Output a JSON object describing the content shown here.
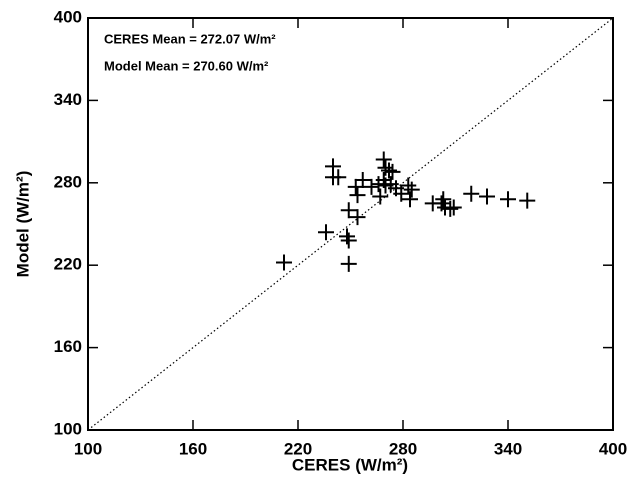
{
  "chart_data": {
    "type": "scatter",
    "x_label": "CERES  (W/m²)",
    "y_label": "Model  (W/m²)",
    "annotations": [
      "CERES Mean = 272.07 W/m²",
      "Model   Mean = 270.60 W/m²"
    ],
    "xlim": [
      100,
      400
    ],
    "ylim": [
      100,
      400
    ],
    "xticks": [
      100,
      160,
      220,
      280,
      340,
      400
    ],
    "yticks": [
      100,
      160,
      220,
      280,
      340,
      400
    ],
    "color": "#000000",
    "x": [
      212,
      249,
      249,
      248,
      236,
      249,
      254,
      240,
      240,
      243,
      253,
      254,
      257,
      262,
      266,
      267,
      269,
      269,
      270,
      272,
      274,
      270,
      273,
      276,
      279,
      283,
      285,
      284,
      297,
      302,
      303,
      304,
      309,
      307,
      319,
      328,
      340,
      351
    ],
    "values": [
      222,
      221,
      238,
      241,
      244,
      260,
      255,
      292,
      284,
      284,
      277,
      271,
      282,
      277,
      279,
      270,
      282,
      297,
      291,
      289,
      288,
      278,
      279,
      276,
      272,
      278,
      275,
      268,
      265,
      265,
      268,
      262,
      262,
      261,
      272,
      270,
      268,
      267
    ]
  }
}
